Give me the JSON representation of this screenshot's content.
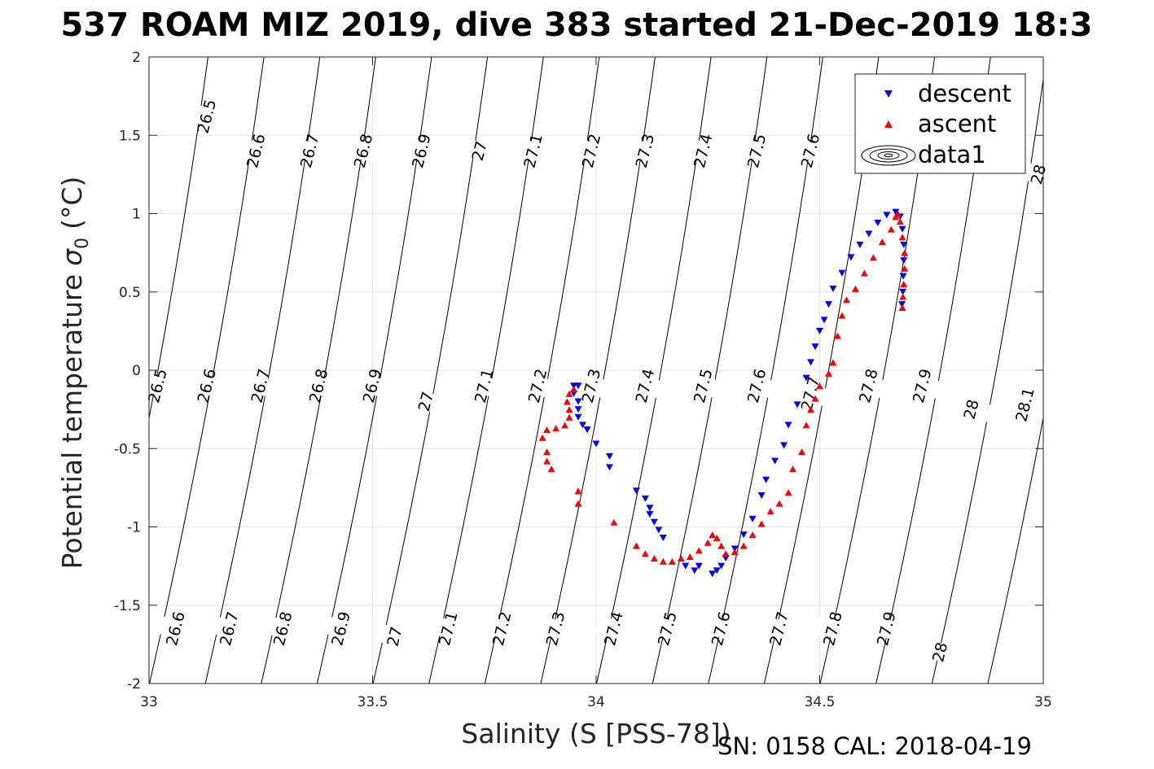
{
  "title": "537 ROAM MIZ 2019, dive 383 started 21-Dec-2019 18:3",
  "footer": "SN: 0158  CAL: 2018-04-19",
  "colors": {
    "descent": "#0000ff",
    "ascent": "#ff0000",
    "contour": "#000000",
    "grid": "#e6e6e6"
  },
  "chart_data": {
    "type": "scatter",
    "title": "537 ROAM MIZ 2019, dive 383 started 21-Dec-2019 18:3",
    "xlabel": "Salinity (S [PSS-78])",
    "ylabel": "Potential temperature σ 0 (°C)",
    "ylabel_main": "Potential temperature",
    "ylabel_sym": "σ",
    "ylabel_sub": "0",
    "ylabel_unit": "(°C)",
    "xlim": [
      33,
      35
    ],
    "ylim": [
      -2,
      2
    ],
    "xticks": [
      "33",
      "33.5",
      "34",
      "34.5",
      "35"
    ],
    "yticks": [
      "-2",
      "-1.5",
      "-1",
      "-0.5",
      "0",
      "0.5",
      "1",
      "1.5",
      "2"
    ],
    "grid": true,
    "legend": {
      "placement": "top-right",
      "entries": [
        "descent",
        "ascent",
        "data1"
      ]
    },
    "contours": {
      "type": "density isopycnals",
      "levels": [
        26.5,
        26.6,
        26.7,
        26.8,
        26.9,
        27.0,
        27.1,
        27.2,
        27.3,
        27.4,
        27.5,
        27.6,
        27.7,
        27.8,
        27.9,
        28.0,
        28.1
      ],
      "labels": [
        {
          "text": "26.5",
          "x": 33.13,
          "y": 1.62
        },
        {
          "text": "26.6",
          "x": 33.24,
          "y": 1.4
        },
        {
          "text": "26.7",
          "x": 33.36,
          "y": 1.4
        },
        {
          "text": "26.8",
          "x": 33.48,
          "y": 1.4
        },
        {
          "text": "26.9",
          "x": 33.61,
          "y": 1.4
        },
        {
          "text": "27",
          "x": 33.74,
          "y": 1.4
        },
        {
          "text": "27.1",
          "x": 33.86,
          "y": 1.4
        },
        {
          "text": "27.2",
          "x": 33.99,
          "y": 1.4
        },
        {
          "text": "27.3",
          "x": 34.11,
          "y": 1.4
        },
        {
          "text": "27.4",
          "x": 34.24,
          "y": 1.4
        },
        {
          "text": "27.5",
          "x": 34.36,
          "y": 1.4
        },
        {
          "text": "27.6",
          "x": 34.48,
          "y": 1.4
        },
        {
          "text": "28",
          "x": 34.99,
          "y": 1.25
        },
        {
          "text": "26.5",
          "x": 33.02,
          "y": -0.1
        },
        {
          "text": "26.6",
          "x": 33.13,
          "y": -0.1
        },
        {
          "text": "26.7",
          "x": 33.25,
          "y": -0.1
        },
        {
          "text": "26.8",
          "x": 33.38,
          "y": -0.1
        },
        {
          "text": "26.9",
          "x": 33.5,
          "y": -0.1
        },
        {
          "text": "27",
          "x": 33.62,
          "y": -0.2
        },
        {
          "text": "27.1",
          "x": 33.75,
          "y": -0.1
        },
        {
          "text": "27.2",
          "x": 33.87,
          "y": -0.1
        },
        {
          "text": "27.3",
          "x": 33.99,
          "y": -0.1
        },
        {
          "text": "27.4",
          "x": 34.11,
          "y": -0.1
        },
        {
          "text": "27.5",
          "x": 34.24,
          "y": -0.1
        },
        {
          "text": "27.6",
          "x": 34.36,
          "y": -0.1
        },
        {
          "text": "27.7",
          "x": 34.48,
          "y": -0.15
        },
        {
          "text": "27.8",
          "x": 34.61,
          "y": -0.1
        },
        {
          "text": "27.9",
          "x": 34.73,
          "y": -0.1
        },
        {
          "text": "28",
          "x": 34.84,
          "y": -0.25
        },
        {
          "text": "28.1",
          "x": 34.96,
          "y": -0.22
        },
        {
          "text": "26.6",
          "x": 33.06,
          "y": -1.65
        },
        {
          "text": "26.7",
          "x": 33.18,
          "y": -1.65
        },
        {
          "text": "26.8",
          "x": 33.3,
          "y": -1.65
        },
        {
          "text": "26.9",
          "x": 33.43,
          "y": -1.65
        },
        {
          "text": "27",
          "x": 33.55,
          "y": -1.7
        },
        {
          "text": "27.1",
          "x": 33.67,
          "y": -1.65
        },
        {
          "text": "27.2",
          "x": 33.79,
          "y": -1.65
        },
        {
          "text": "27.3",
          "x": 33.91,
          "y": -1.65
        },
        {
          "text": "27.4",
          "x": 34.04,
          "y": -1.65
        },
        {
          "text": "27.5",
          "x": 34.16,
          "y": -1.65
        },
        {
          "text": "27.6",
          "x": 34.28,
          "y": -1.65
        },
        {
          "text": "27.7",
          "x": 34.41,
          "y": -1.65
        },
        {
          "text": "27.8",
          "x": 34.53,
          "y": -1.65
        },
        {
          "text": "27.9",
          "x": 34.65,
          "y": -1.65
        },
        {
          "text": "28",
          "x": 34.77,
          "y": -1.8
        }
      ]
    },
    "series": [
      {
        "name": "descent",
        "marker": "triangle-down",
        "points": [
          [
            33.95,
            -0.1
          ],
          [
            33.96,
            -0.1
          ],
          [
            33.95,
            -0.15
          ],
          [
            33.96,
            -0.2
          ],
          [
            33.96,
            -0.25
          ],
          [
            33.96,
            -0.3
          ],
          [
            33.97,
            -0.35
          ],
          [
            33.98,
            -0.38
          ],
          [
            34.0,
            -0.47
          ],
          [
            34.03,
            -0.55
          ],
          [
            34.03,
            -0.62
          ],
          [
            34.09,
            -0.77
          ],
          [
            34.11,
            -0.82
          ],
          [
            34.12,
            -0.88
          ],
          [
            34.12,
            -0.92
          ],
          [
            34.13,
            -0.97
          ],
          [
            34.14,
            -1.02
          ],
          [
            34.15,
            -1.07
          ],
          [
            34.2,
            -1.25
          ],
          [
            34.22,
            -1.28
          ],
          [
            34.23,
            -1.25
          ],
          [
            34.26,
            -1.3
          ],
          [
            34.27,
            -1.28
          ],
          [
            34.28,
            -1.25
          ],
          [
            34.29,
            -1.2
          ],
          [
            34.31,
            -1.14
          ],
          [
            34.33,
            -1.05
          ],
          [
            34.35,
            -0.95
          ],
          [
            34.37,
            -0.8
          ],
          [
            34.38,
            -0.7
          ],
          [
            34.4,
            -0.58
          ],
          [
            34.42,
            -0.48
          ],
          [
            34.43,
            -0.35
          ],
          [
            34.45,
            -0.22
          ],
          [
            34.47,
            -0.05
          ],
          [
            34.48,
            0.05
          ],
          [
            34.49,
            0.15
          ],
          [
            34.5,
            0.25
          ],
          [
            34.51,
            0.32
          ],
          [
            34.52,
            0.42
          ],
          [
            34.53,
            0.52
          ],
          [
            34.55,
            0.62
          ],
          [
            34.57,
            0.72
          ],
          [
            34.59,
            0.8
          ],
          [
            34.61,
            0.87
          ],
          [
            34.63,
            0.94
          ],
          [
            34.65,
            0.99
          ],
          [
            34.67,
            1.01
          ],
          [
            34.68,
            0.98
          ],
          [
            34.685,
            0.9
          ],
          [
            34.688,
            0.8
          ],
          [
            34.688,
            0.7
          ],
          [
            34.687,
            0.6
          ],
          [
            34.686,
            0.5
          ],
          [
            34.684,
            0.42
          ]
        ]
      },
      {
        "name": "ascent",
        "marker": "triangle-up",
        "points": [
          [
            33.95,
            -0.12
          ],
          [
            33.94,
            -0.15
          ],
          [
            33.935,
            -0.2
          ],
          [
            33.94,
            -0.25
          ],
          [
            33.94,
            -0.3
          ],
          [
            33.93,
            -0.35
          ],
          [
            33.91,
            -0.37
          ],
          [
            33.89,
            -0.38
          ],
          [
            33.88,
            -0.43
          ],
          [
            33.89,
            -0.52
          ],
          [
            33.89,
            -0.58
          ],
          [
            33.9,
            -0.63
          ],
          [
            33.96,
            -0.77
          ],
          [
            33.96,
            -0.85
          ],
          [
            34.04,
            -0.97
          ],
          [
            34.09,
            -1.12
          ],
          [
            34.11,
            -1.17
          ],
          [
            34.13,
            -1.2
          ],
          [
            34.15,
            -1.22
          ],
          [
            34.17,
            -1.22
          ],
          [
            34.19,
            -1.2
          ],
          [
            34.21,
            -1.19
          ],
          [
            34.23,
            -1.15
          ],
          [
            34.25,
            -1.1
          ],
          [
            34.26,
            -1.05
          ],
          [
            34.27,
            -1.07
          ],
          [
            34.28,
            -1.12
          ],
          [
            34.29,
            -1.17
          ],
          [
            34.31,
            -1.16
          ],
          [
            34.33,
            -1.12
          ],
          [
            34.35,
            -1.05
          ],
          [
            34.37,
            -0.98
          ],
          [
            34.39,
            -0.9
          ],
          [
            34.41,
            -0.85
          ],
          [
            34.43,
            -0.78
          ],
          [
            34.44,
            -0.63
          ],
          [
            34.46,
            -0.52
          ],
          [
            34.47,
            -0.35
          ],
          [
            34.48,
            -0.25
          ],
          [
            34.49,
            -0.18
          ],
          [
            34.5,
            -0.1
          ],
          [
            34.52,
            -0.02
          ],
          [
            34.53,
            0.05
          ],
          [
            34.54,
            0.22
          ],
          [
            34.55,
            0.35
          ],
          [
            34.56,
            0.45
          ],
          [
            34.58,
            0.52
          ],
          [
            34.6,
            0.62
          ],
          [
            34.62,
            0.72
          ],
          [
            34.64,
            0.82
          ],
          [
            34.66,
            0.9
          ],
          [
            34.67,
            0.98
          ],
          [
            34.675,
            1.0
          ],
          [
            34.68,
            0.95
          ],
          [
            34.685,
            0.85
          ],
          [
            34.69,
            0.75
          ],
          [
            34.69,
            0.65
          ],
          [
            34.688,
            0.55
          ],
          [
            34.686,
            0.47
          ],
          [
            34.685,
            0.4
          ]
        ]
      }
    ]
  }
}
